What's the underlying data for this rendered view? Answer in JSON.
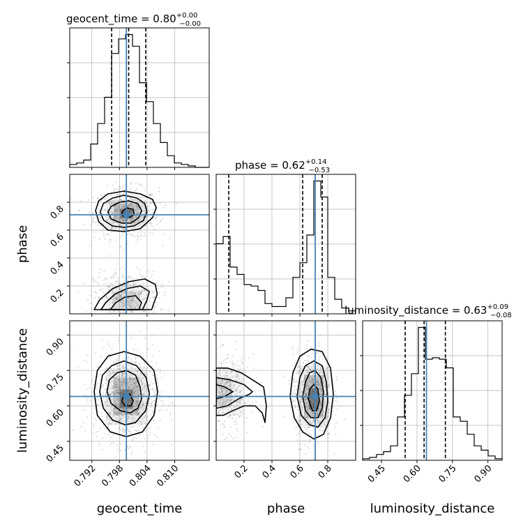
{
  "chart_data": {
    "type": "corner",
    "parameters": [
      "geocent_time",
      "phase",
      "luminosity_distance"
    ],
    "truths": {
      "geocent_time": 0.7995,
      "phase": 0.71,
      "luminosity_distance": 0.64
    },
    "titles": {
      "geocent_time": {
        "prefix": "geocent_time = 0.80",
        "plus": "+0.00",
        "minus": "−0.00"
      },
      "phase": {
        "prefix": "phase = 0.62",
        "plus": "+0.14",
        "minus": "−0.53"
      },
      "luminosity_distance": {
        "prefix": "luminosity_distance = 0.63",
        "plus": "+0.09",
        "minus": "−0.08"
      }
    },
    "axis_labels": {
      "x": [
        "geocent_time",
        "phase",
        "luminosity_distance"
      ],
      "y": [
        "phase",
        "luminosity_distance"
      ]
    },
    "ranges": {
      "geocent_time": [
        0.7872,
        0.8175
      ],
      "phase": [
        0.0,
        1.0
      ],
      "luminosity_distance": [
        0.37,
        0.96
      ]
    },
    "ticks": {
      "geocent_time": {
        "values": [
          0.792,
          0.798,
          0.804,
          0.81
        ],
        "labels": [
          "0.792",
          "0.798",
          "0.804",
          "0.810"
        ]
      },
      "phase_x": {
        "values": [
          0.2,
          0.4,
          0.6,
          0.8
        ],
        "labels": [
          "0.2",
          "0.4",
          "0.6",
          "0.8"
        ]
      },
      "phase_y": {
        "values": [
          0.2,
          0.4,
          0.6,
          0.8
        ],
        "labels": [
          "0.2",
          "0.4",
          "0.6",
          "0.8"
        ]
      },
      "luminosity_distance": {
        "values": [
          0.45,
          0.6,
          0.75,
          0.9
        ],
        "labels": [
          "0.45",
          "0.60",
          "0.75",
          "0.90"
        ]
      }
    },
    "histograms": {
      "geocent_time": {
        "edges": [
          0.7872,
          0.78872,
          0.79023,
          0.79175,
          0.79326,
          0.79478,
          0.79629,
          0.79781,
          0.79932,
          0.80084,
          0.80235,
          0.80387,
          0.80538,
          0.8069,
          0.80841,
          0.80993,
          0.81144,
          0.81296,
          0.81447,
          0.81599,
          0.8175
        ],
        "counts": [
          0.02,
          0.03,
          0.05,
          0.16,
          0.3,
          0.48,
          0.78,
          0.88,
          0.91,
          0.83,
          0.58,
          0.45,
          0.3,
          0.17,
          0.08,
          0.03,
          0.02,
          0.01,
          0.0,
          0.0
        ],
        "quantiles": [
          0.7963,
          0.8,
          0.8037
        ]
      },
      "phase": {
        "edges": [
          0.0,
          0.05,
          0.1,
          0.15,
          0.2,
          0.25,
          0.3,
          0.35,
          0.4,
          0.45,
          0.5,
          0.55,
          0.6,
          0.65,
          0.7,
          0.75,
          0.8,
          0.85,
          0.9,
          0.95,
          1.0
        ],
        "counts": [
          0.48,
          0.53,
          0.32,
          0.27,
          0.2,
          0.19,
          0.16,
          0.07,
          0.05,
          0.05,
          0.11,
          0.25,
          0.35,
          0.54,
          0.91,
          0.8,
          0.25,
          0.1,
          0.04,
          0.02
        ],
        "quantiles": [
          0.09,
          0.62,
          0.76
        ]
      },
      "luminosity_distance": {
        "edges": [
          0.37,
          0.3995,
          0.429,
          0.4585,
          0.488,
          0.5175,
          0.547,
          0.5765,
          0.606,
          0.6355,
          0.665,
          0.6945,
          0.724,
          0.7535,
          0.783,
          0.8125,
          0.842,
          0.8715,
          0.901,
          0.9305,
          0.96
        ],
        "counts": [
          0.01,
          0.02,
          0.04,
          0.06,
          0.1,
          0.3,
          0.45,
          0.6,
          0.92,
          0.7,
          0.71,
          0.7,
          0.64,
          0.3,
          0.27,
          0.18,
          0.1,
          0.07,
          0.03,
          0.01
        ],
        "quantiles": [
          0.55,
          0.63,
          0.72
        ]
      }
    },
    "contours_2d": {
      "phase_vs_geocent_time": [
        [
          [
            0.7928,
            0.74
          ],
          [
            0.7935,
            0.81
          ],
          [
            0.7955,
            0.86
          ],
          [
            0.799,
            0.88
          ],
          [
            0.8025,
            0.86
          ],
          [
            0.8052,
            0.82
          ],
          [
            0.806,
            0.76
          ],
          [
            0.8052,
            0.69
          ],
          [
            0.8025,
            0.61
          ],
          [
            0.799,
            0.59
          ],
          [
            0.7955,
            0.6
          ],
          [
            0.7935,
            0.66
          ]
        ],
        [
          [
            0.7938,
            0.73
          ],
          [
            0.7945,
            0.79
          ],
          [
            0.7965,
            0.83
          ],
          [
            0.799,
            0.85
          ],
          [
            0.8018,
            0.83
          ],
          [
            0.8035,
            0.79
          ],
          [
            0.804,
            0.73
          ],
          [
            0.8032,
            0.67
          ],
          [
            0.8012,
            0.63
          ],
          [
            0.799,
            0.62
          ],
          [
            0.7965,
            0.63
          ],
          [
            0.7946,
            0.67
          ]
        ],
        [
          [
            0.7955,
            0.73
          ],
          [
            0.7962,
            0.77
          ],
          [
            0.798,
            0.8
          ],
          [
            0.8,
            0.81
          ],
          [
            0.802,
            0.79
          ],
          [
            0.8028,
            0.74
          ],
          [
            0.8022,
            0.69
          ],
          [
            0.8005,
            0.65
          ],
          [
            0.7985,
            0.65
          ],
          [
            0.7962,
            0.68
          ]
        ],
        [
          [
            0.7985,
            0.73
          ],
          [
            0.7995,
            0.76
          ],
          [
            0.801,
            0.75
          ],
          [
            0.8012,
            0.71
          ],
          [
            0.8,
            0.69
          ],
          [
            0.7988,
            0.7
          ]
        ],
        [
          [
            0.7925,
            0.03
          ],
          [
            0.7937,
            0.1
          ],
          [
            0.7965,
            0.18
          ],
          [
            0.8,
            0.23
          ],
          [
            0.8035,
            0.25
          ],
          [
            0.8058,
            0.21
          ],
          [
            0.8062,
            0.14
          ],
          [
            0.8055,
            0.08
          ],
          [
            0.805,
            0.03
          ]
        ],
        [
          [
            0.794,
            0.03
          ],
          [
            0.795,
            0.08
          ],
          [
            0.797,
            0.14
          ],
          [
            0.7995,
            0.18
          ],
          [
            0.8025,
            0.2
          ],
          [
            0.8045,
            0.16
          ],
          [
            0.804,
            0.1
          ],
          [
            0.803,
            0.03
          ]
        ],
        [
          [
            0.796,
            0.03
          ],
          [
            0.7972,
            0.08
          ],
          [
            0.7992,
            0.12
          ],
          [
            0.8015,
            0.13
          ],
          [
            0.8028,
            0.08
          ],
          [
            0.8022,
            0.03
          ]
        ]
      ],
      "luminosity_distance_vs_geocent_time": [
        [
          [
            0.7925,
            0.66
          ],
          [
            0.7932,
            0.75
          ],
          [
            0.7955,
            0.81
          ],
          [
            0.799,
            0.83
          ],
          [
            0.8025,
            0.81
          ],
          [
            0.8055,
            0.75
          ],
          [
            0.8063,
            0.66
          ],
          [
            0.8055,
            0.56
          ],
          [
            0.803,
            0.49
          ],
          [
            0.7995,
            0.47
          ],
          [
            0.796,
            0.49
          ],
          [
            0.7932,
            0.56
          ]
        ],
        [
          [
            0.7937,
            0.66
          ],
          [
            0.7943,
            0.73
          ],
          [
            0.7963,
            0.77
          ],
          [
            0.799,
            0.79
          ],
          [
            0.8017,
            0.77
          ],
          [
            0.8038,
            0.72
          ],
          [
            0.8045,
            0.65
          ],
          [
            0.8037,
            0.58
          ],
          [
            0.8015,
            0.53
          ],
          [
            0.7993,
            0.52
          ],
          [
            0.7965,
            0.54
          ],
          [
            0.7945,
            0.59
          ]
        ],
        [
          [
            0.7953,
            0.66
          ],
          [
            0.7958,
            0.71
          ],
          [
            0.7975,
            0.74
          ],
          [
            0.7995,
            0.75
          ],
          [
            0.8015,
            0.73
          ],
          [
            0.8025,
            0.68
          ],
          [
            0.8028,
            0.63
          ],
          [
            0.802,
            0.59
          ],
          [
            0.8003,
            0.57
          ],
          [
            0.7982,
            0.58
          ],
          [
            0.7962,
            0.61
          ]
        ],
        [
          [
            0.7985,
            0.62
          ],
          [
            0.799,
            0.65
          ],
          [
            0.8003,
            0.65
          ],
          [
            0.801,
            0.62
          ],
          [
            0.8005,
            0.6
          ],
          [
            0.7992,
            0.6
          ]
        ]
      ],
      "luminosity_distance_vs_phase": [
        [
          [
            0.53,
            0.64
          ],
          [
            0.55,
            0.74
          ],
          [
            0.6,
            0.81
          ],
          [
            0.68,
            0.84
          ],
          [
            0.76,
            0.83
          ],
          [
            0.82,
            0.76
          ],
          [
            0.84,
            0.65
          ],
          [
            0.82,
            0.55
          ],
          [
            0.77,
            0.48
          ],
          [
            0.7,
            0.46
          ],
          [
            0.62,
            0.49
          ],
          [
            0.56,
            0.55
          ]
        ],
        [
          [
            0.58,
            0.64
          ],
          [
            0.6,
            0.72
          ],
          [
            0.64,
            0.77
          ],
          [
            0.7,
            0.79
          ],
          [
            0.76,
            0.77
          ],
          [
            0.79,
            0.7
          ],
          [
            0.8,
            0.62
          ],
          [
            0.78,
            0.55
          ],
          [
            0.73,
            0.51
          ],
          [
            0.67,
            0.52
          ],
          [
            0.61,
            0.56
          ]
        ],
        [
          [
            0.62,
            0.64
          ],
          [
            0.64,
            0.7
          ],
          [
            0.67,
            0.74
          ],
          [
            0.71,
            0.75
          ],
          [
            0.75,
            0.72
          ],
          [
            0.77,
            0.66
          ],
          [
            0.76,
            0.59
          ],
          [
            0.73,
            0.55
          ],
          [
            0.68,
            0.55
          ],
          [
            0.64,
            0.58
          ]
        ],
        [
          [
            0.66,
            0.63
          ],
          [
            0.67,
            0.67
          ],
          [
            0.7,
            0.69
          ],
          [
            0.73,
            0.67
          ],
          [
            0.74,
            0.62
          ],
          [
            0.72,
            0.58
          ],
          [
            0.69,
            0.58
          ]
        ],
        [
          [
            0.0,
            0.56
          ],
          [
            0.05,
            0.56
          ],
          [
            0.12,
            0.58
          ],
          [
            0.2,
            0.6
          ],
          [
            0.28,
            0.6
          ],
          [
            0.33,
            0.57
          ],
          [
            0.35,
            0.53
          ],
          [
            0.36,
            0.6
          ],
          [
            0.34,
            0.68
          ],
          [
            0.26,
            0.71
          ],
          [
            0.18,
            0.74
          ],
          [
            0.08,
            0.76
          ],
          [
            0.0,
            0.76
          ]
        ],
        [
          [
            0.0,
            0.59
          ],
          [
            0.08,
            0.6
          ],
          [
            0.16,
            0.63
          ],
          [
            0.24,
            0.65
          ],
          [
            0.26,
            0.66
          ],
          [
            0.2,
            0.69
          ],
          [
            0.1,
            0.71
          ],
          [
            0.0,
            0.72
          ]
        ],
        [
          [
            0.0,
            0.63
          ],
          [
            0.06,
            0.64
          ],
          [
            0.12,
            0.66
          ],
          [
            0.06,
            0.68
          ],
          [
            0.0,
            0.69
          ]
        ]
      ]
    },
    "style": {
      "truth_color": "#4682b4",
      "contour_color": "#000000",
      "grid": true,
      "grid_color": "#b0b0b0",
      "frame_color": "#000000",
      "scatter_color": "#808080"
    }
  }
}
